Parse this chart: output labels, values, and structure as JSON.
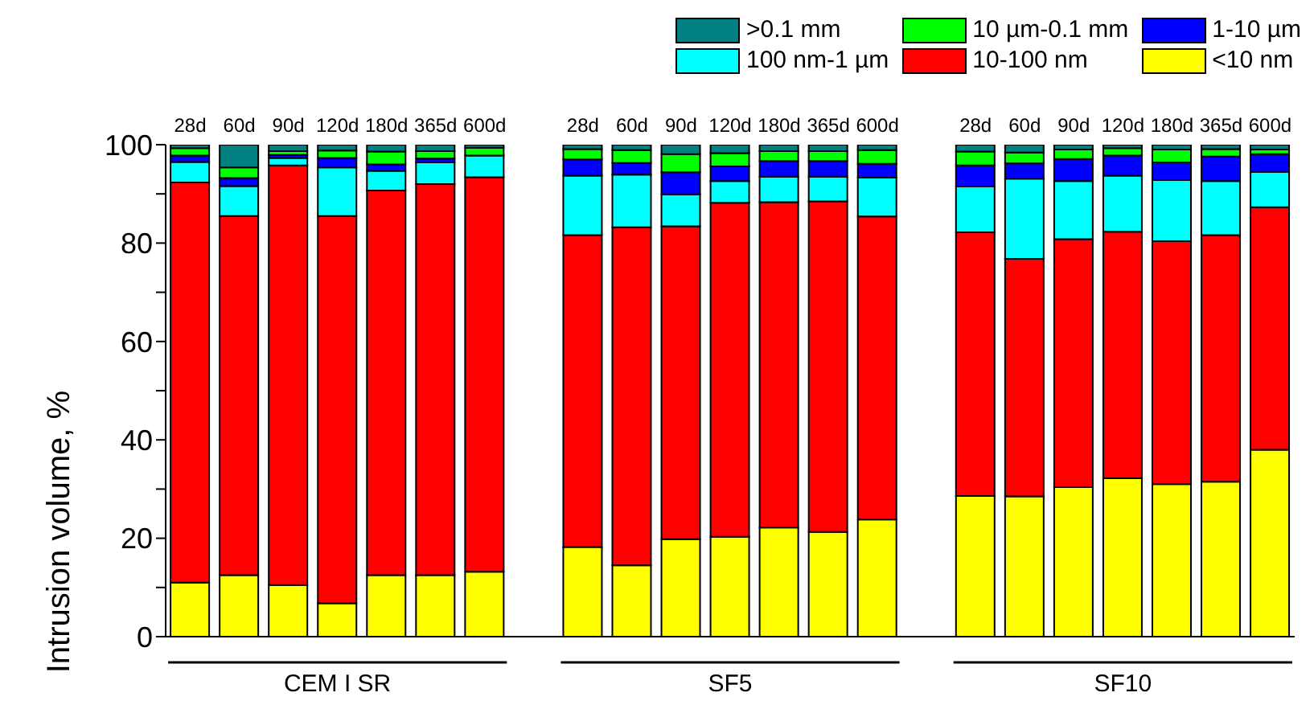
{
  "chart_data": {
    "type": "bar",
    "stacked": true,
    "ylabel": "Intrusion volume, %",
    "categories": [
      "28d",
      "60d",
      "90d",
      "120d",
      "180d",
      "365d",
      "600d",
      null,
      "28d",
      "60d",
      "90d",
      "120d",
      "180d",
      "365d",
      "600d",
      null,
      "28d",
      "60d",
      "90d",
      "120d",
      "180d",
      "365d",
      "600d"
    ],
    "annotations": [
      "CEM I SR",
      "SF5",
      "SF10"
    ],
    "ylim": [
      0,
      100
    ],
    "yticks": [
      0,
      {
        "value": 10,
        "label": null
      },
      20,
      {
        "value": 30,
        "label": null
      },
      40,
      {
        "value": 50,
        "label": null
      },
      60,
      {
        "value": 70,
        "label": null
      },
      80,
      {
        "value": 90,
        "label": null
      },
      100
    ],
    "grid": false,
    "legend": "top right",
    "series": [
      {
        "name": "<10 nm",
        "color": "#ffff00",
        "values": [
          11,
          12.5,
          10.5,
          6.8,
          12.5,
          12.5,
          13.2,
          null,
          18.2,
          14.5,
          19.8,
          20.3,
          22.2,
          21.3,
          23.8,
          null,
          28.6,
          28.5,
          30.4,
          32.2,
          31,
          31.5,
          38
        ]
      },
      {
        "name": "10-100 nm",
        "color": "#ff0000",
        "values": [
          81.3,
          73,
          85.3,
          78.7,
          78.2,
          79.5,
          80.2,
          null,
          63.4,
          68.7,
          63.6,
          67.9,
          66.1,
          67.2,
          61.6,
          null,
          53.6,
          48.3,
          50.4,
          50.1,
          49.4,
          50.1,
          49.3
        ]
      },
      {
        "name": "100 nm-1 µm",
        "color": "#00ffff",
        "values": [
          4.2,
          6.1,
          1.5,
          9.9,
          4,
          4.4,
          4.4,
          null,
          12.1,
          10.7,
          6.5,
          4.4,
          5.2,
          5,
          7.9,
          null,
          9.3,
          16.3,
          11.8,
          11.4,
          12.4,
          11,
          7.2
        ]
      },
      {
        "name": "1-10 µm",
        "color": "#0000ff",
        "values": [
          1.3,
          1.6,
          0.6,
          1.9,
          1.3,
          0.8,
          null,
          null,
          3.3,
          2.4,
          4.5,
          3,
          3.2,
          3.2,
          2.8,
          null,
          4.3,
          3.1,
          4.5,
          4.1,
          3.6,
          5,
          3.6
        ]
      },
      {
        "name": "10 µm-0.1 mm",
        "color": "#00ff00",
        "values": [
          1.5,
          2.2,
          0.8,
          1.5,
          2.6,
          1.5,
          1.6,
          null,
          2.1,
          2.6,
          3.7,
          2.7,
          2,
          2,
          2.8,
          null,
          2.8,
          2.2,
          1.9,
          1.5,
          2.6,
          1.5,
          0.9
        ]
      },
      {
        "name": ">0.1 mm",
        "color": "#008080",
        "values": [
          0.7,
          4.6,
          1.3,
          1.2,
          1.4,
          1.3,
          0.6,
          null,
          0.9,
          1.1,
          1.9,
          1.7,
          1.3,
          1.3,
          1.1,
          null,
          1.4,
          1.6,
          1,
          0.7,
          1,
          0.9,
          1
        ]
      }
    ]
  }
}
